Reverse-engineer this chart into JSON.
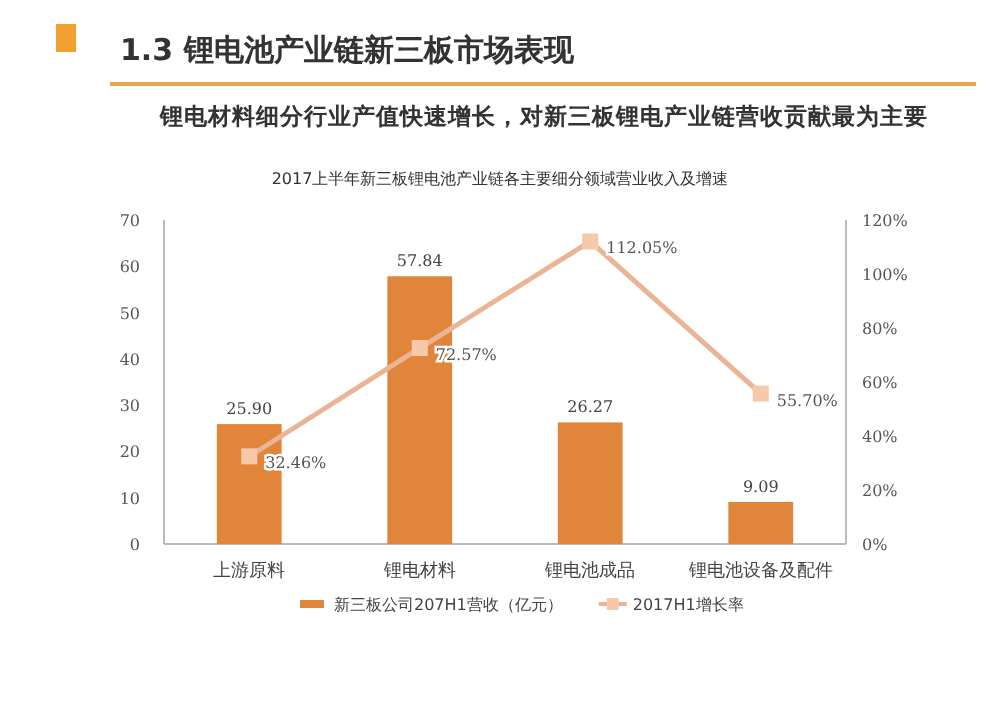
{
  "chart_data": {
    "type": "bar",
    "title": "1.3 锂电池产业链新三板市场表现",
    "subtitle": "锂电材料细分行业产值快速增长，对新三板锂电产业链营收贡献最为主要",
    "annotations": [
      "2017上半年新三板锂电池产业链各主要细分领域营业收入及增速"
    ],
    "categories": [
      "上游原料",
      "锂电材料",
      "锂电池成品",
      "锂电池设备及配件"
    ],
    "series": [
      {
        "name": "新三板公司207H1营收（亿元）",
        "color": "#e0853a",
        "values": [
          25.9,
          57.84,
          26.27,
          9.09
        ],
        "value_labels": [
          "25.90",
          "57.84",
          "26.27",
          "9.09"
        ]
      },
      {
        "name": "2017H1增长率",
        "type": "line",
        "axis": "y2",
        "color": "#e9b596",
        "marker": "square",
        "values": [
          32.46,
          72.57,
          112.05,
          55.7
        ],
        "value_labels": [
          "32.46%",
          "72.57%",
          "112.05%",
          "55.70%"
        ]
      }
    ],
    "ylim": [
      0,
      70
    ],
    "yticks": [
      0,
      10,
      20,
      30,
      40,
      50,
      60,
      70
    ],
    "y2lim": [
      0,
      120
    ],
    "y2ticks": [
      {
        "value": 0,
        "label": "0%"
      },
      {
        "value": 20,
        "label": "20%"
      },
      {
        "value": 40,
        "label": "40%"
      },
      {
        "value": 60,
        "label": "60%"
      },
      {
        "value": 80,
        "label": "80%"
      },
      {
        "value": 100,
        "label": "100%"
      },
      {
        "value": 120,
        "label": "120%"
      }
    ],
    "legend": "bottom",
    "grid": false
  }
}
